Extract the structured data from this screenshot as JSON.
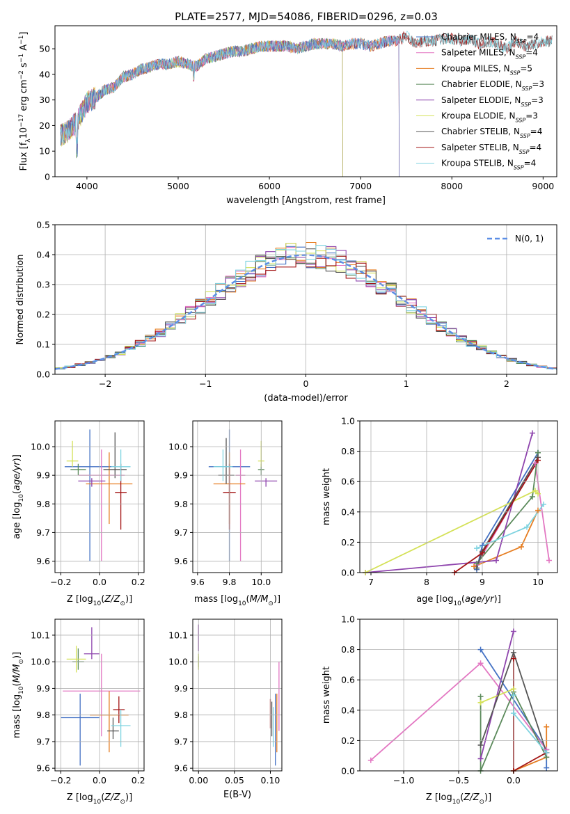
{
  "title": "PLATE=2577, MJD=54086, FIBERID=0296, z=0.03",
  "colors": {
    "series": [
      "#4472c4",
      "#e377c2",
      "#e67e22",
      "#5b8a5b",
      "#8e44ad",
      "#d4e157",
      "#555555",
      "#a31515",
      "#7fd3e0"
    ],
    "grid": "#b0b0b0",
    "normal": "#5b8ee6"
  },
  "chart_data": [
    {
      "id": "spectrum",
      "type": "line",
      "xlabel": "wavelength [Angstrom, rest frame]",
      "ylabel": "Flux [fλ10⁻¹⁷ erg cm⁻² s⁻¹ A⁻¹]",
      "xlim": [
        3650,
        9150
      ],
      "ylim": [
        0,
        59
      ],
      "xticks": [
        4000,
        5000,
        6000,
        7000,
        8000,
        9000
      ],
      "yticks": [
        0,
        10,
        20,
        30,
        40,
        50
      ],
      "legend_placement": "top-right",
      "series": [
        {
          "name": "Chabrier MILES, N",
          "sub": "SSP",
          "suffix": "=4",
          "cutoff": 7420
        },
        {
          "name": "Salpeter MILES, N",
          "sub": "SSP",
          "suffix": "=4",
          "cutoff": 7420
        },
        {
          "name": "Kroupa MILES, N",
          "sub": "SSP",
          "suffix": "=5",
          "cutoff": 7420
        },
        {
          "name": "Chabrier ELODIE, N",
          "sub": "SSP",
          "suffix": "=3",
          "cutoff": 6800
        },
        {
          "name": "Salpeter ELODIE, N",
          "sub": "SSP",
          "suffix": "=3",
          "cutoff": 6800
        },
        {
          "name": "Kroupa ELODIE, N",
          "sub": "SSP",
          "suffix": "=3",
          "cutoff": 6800
        },
        {
          "name": "Chabrier STELIB, N",
          "sub": "SSP",
          "suffix": "=4",
          "cutoff": 9150
        },
        {
          "name": "Salpeter STELIB, N",
          "sub": "SSP",
          "suffix": "=4",
          "cutoff": 9150
        },
        {
          "name": "Kroupa STELIB, N",
          "sub": "SSP",
          "suffix": "=4",
          "cutoff": 9150
        }
      ],
      "continuum": {
        "x": [
          3710,
          3800,
          3900,
          4000,
          4100,
          4200,
          4300,
          4400,
          4500,
          4600,
          4700,
          4800,
          4900,
          5000,
          5100,
          5200,
          5300,
          5400,
          5500,
          5600,
          5700,
          5800,
          5900,
          6000,
          6100,
          6200,
          6300,
          6400,
          6500,
          6600,
          6700,
          6800,
          6900,
          7000,
          7100,
          7200,
          7300,
          7400,
          7500,
          7600,
          7700,
          7800,
          7900,
          8000,
          8100,
          8200,
          8300,
          8400,
          8500,
          8600,
          8700,
          8800,
          8900,
          9000,
          9100
        ],
        "y": [
          16,
          18,
          22,
          29,
          31,
          34,
          35,
          39,
          40,
          42,
          43,
          44,
          44,
          45,
          44,
          43,
          46,
          47,
          48,
          49,
          49,
          50,
          51,
          51,
          51,
          51,
          50,
          51,
          52,
          52,
          52,
          51,
          52,
          52,
          51,
          52,
          53,
          53,
          55,
          52,
          53,
          53,
          54,
          54,
          53,
          54,
          52,
          53,
          52,
          50,
          53,
          51,
          52,
          53,
          53
        ]
      }
    },
    {
      "id": "residuals",
      "type": "histogram",
      "xlabel": "(data-model)/error",
      "ylabel": "Normed distribution",
      "xlim": [
        -2.5,
        2.5
      ],
      "ylim": [
        0,
        0.5
      ],
      "xticks": [
        -2,
        -1,
        0,
        1,
        2
      ],
      "yticks": [
        0.0,
        0.1,
        0.2,
        0.3,
        0.4,
        0.5
      ],
      "bin_width": 0.1,
      "legend": "N(0, 1)",
      "legend_placement": "top-right",
      "series_count": 9
    },
    {
      "id": "z_vs_age",
      "type": "scatter",
      "xlabel": "Z [log10(Z/Z☉)]",
      "ylabel": "age [log10(age/yr)]",
      "xlim": [
        -0.23,
        0.23
      ],
      "ylim": [
        9.56,
        10.09
      ],
      "xticks": [
        -0.2,
        0.0,
        0.2
      ],
      "yticks": [
        9.6,
        9.7,
        9.8,
        9.9,
        10.0
      ],
      "points": [
        {
          "x": -0.05,
          "y": 9.93,
          "xerr": 0.13,
          "yerr": [
            0.33,
            0.13
          ]
        },
        {
          "x": 0.01,
          "y": 9.9,
          "xerr": 0.12,
          "yerr": [
            0.3,
            0.09
          ]
        },
        {
          "x": 0.05,
          "y": 9.87,
          "xerr": 0.12,
          "yerr": [
            0.14,
            0.11
          ]
        },
        {
          "x": -0.11,
          "y": 9.92,
          "xerr": 0.04,
          "yerr": [
            0.02,
            0.02
          ]
        },
        {
          "x": -0.04,
          "y": 9.88,
          "xerr": 0.07,
          "yerr": [
            0.02,
            0.01
          ]
        },
        {
          "x": -0.14,
          "y": 9.95,
          "xerr": 0.03,
          "yerr": [
            0.02,
            0.07
          ]
        },
        {
          "x": 0.08,
          "y": 9.92,
          "xerr": 0.06,
          "yerr": [
            0.03,
            0.13
          ]
        },
        {
          "x": 0.11,
          "y": 9.84,
          "xerr": 0.03,
          "yerr": [
            0.13,
            0.1
          ]
        },
        {
          "x": 0.11,
          "y": 9.93,
          "xerr": 0.05,
          "yerr": [
            0.05,
            0.06
          ]
        }
      ]
    },
    {
      "id": "mass_vs_age",
      "type": "scatter",
      "xlabel": "mass [log10(M/M☉)]",
      "ylabel": "",
      "xlim": [
        9.57,
        10.13
      ],
      "ylim": [
        9.56,
        10.09
      ],
      "xticks": [
        9.6,
        9.8,
        10.0
      ],
      "yticks": [
        9.6,
        9.7,
        9.8,
        9.9,
        10.0
      ],
      "points": [
        {
          "x": 9.8,
          "y": 9.93,
          "xerr": 0.13,
          "yerr": [
            0.33,
            0.13
          ]
        },
        {
          "x": 9.87,
          "y": 9.9,
          "xerr": 0.03,
          "yerr": [
            0.3,
            0.09
          ]
        },
        {
          "x": 9.8,
          "y": 9.87,
          "xerr": 0.1,
          "yerr": [
            0.14,
            0.11
          ]
        },
        {
          "x": 10.0,
          "y": 9.92,
          "xerr": 0.02,
          "yerr": [
            0.02,
            0.02
          ]
        },
        {
          "x": 10.03,
          "y": 9.88,
          "xerr": 0.07,
          "yerr": [
            0.02,
            0.01
          ]
        },
        {
          "x": 10.0,
          "y": 9.95,
          "xerr": 0.02,
          "yerr": [
            0.02,
            0.07
          ]
        },
        {
          "x": 9.78,
          "y": 9.9,
          "xerr": 0.05,
          "yerr": [
            0.03,
            0.13
          ]
        },
        {
          "x": 9.8,
          "y": 9.84,
          "xerr": 0.04,
          "yerr": [
            0.13,
            0.1
          ]
        },
        {
          "x": 9.76,
          "y": 9.93,
          "xerr": 0.06,
          "yerr": [
            0.05,
            0.06
          ]
        }
      ]
    },
    {
      "id": "age_vs_weight",
      "type": "line",
      "xlabel": "age [log10(age/yr)]",
      "ylabel": "mass weight",
      "xlim": [
        6.8,
        10.35
      ],
      "ylim": [
        0,
        1.0
      ],
      "xticks": [
        7,
        8,
        9,
        10
      ],
      "yticks": [
        0.0,
        0.2,
        0.4,
        0.6,
        0.8,
        1.0
      ],
      "series": [
        {
          "x": [
            8.9,
            9.0,
            10.0
          ],
          "y": [
            0.02,
            0.18,
            0.79
          ]
        },
        {
          "x": [
            8.9,
            9.95,
            10.2
          ],
          "y": [
            0.05,
            0.72,
            0.08
          ]
        },
        {
          "x": [
            8.85,
            9.7,
            10.0
          ],
          "y": [
            0.04,
            0.17,
            0.41
          ]
        },
        {
          "x": [
            8.9,
            9.9,
            10.0
          ],
          "y": [
            0.06,
            0.5,
            0.79
          ]
        },
        {
          "x": [
            6.9,
            9.25,
            9.9
          ],
          "y": [
            0.0,
            0.08,
            0.92
          ]
        },
        {
          "x": [
            6.9,
            9.95,
            10.0
          ],
          "y": [
            0.0,
            0.54,
            0.52
          ]
        },
        {
          "x": [
            8.9,
            9.0,
            10.0
          ],
          "y": [
            0.03,
            0.14,
            0.76
          ]
        },
        {
          "x": [
            8.5,
            9.0,
            10.0
          ],
          "y": [
            0.0,
            0.13,
            0.74
          ]
        },
        {
          "x": [
            8.9,
            9.8,
            10.1
          ],
          "y": [
            0.16,
            0.3,
            0.45
          ]
        }
      ]
    },
    {
      "id": "z_vs_mass",
      "type": "scatter",
      "xlabel": "Z [log10(Z/Z☉)]",
      "ylabel": "mass [log10(M/M☉)]",
      "xlim": [
        -0.23,
        0.23
      ],
      "ylim": [
        9.59,
        10.16
      ],
      "xticks": [
        -0.2,
        0.0,
        0.2
      ],
      "yticks": [
        9.6,
        9.7,
        9.8,
        9.9,
        10.0,
        10.1
      ],
      "points": [
        {
          "x": -0.1,
          "y": 9.79,
          "xerr": 0.1,
          "yerr": [
            0.18,
            0.09
          ]
        },
        {
          "x": 0.01,
          "y": 9.89,
          "xerr": 0.2,
          "yerr": [
            0.17,
            0.14
          ]
        },
        {
          "x": 0.05,
          "y": 9.8,
          "xerr": 0.1,
          "yerr": [
            0.14,
            0.09
          ]
        },
        {
          "x": -0.11,
          "y": 10.0,
          "xerr": 0.03,
          "yerr": [
            0.03,
            0.05
          ]
        },
        {
          "x": -0.04,
          "y": 10.03,
          "xerr": 0.04,
          "yerr": [
            0.02,
            0.1
          ]
        },
        {
          "x": -0.12,
          "y": 10.01,
          "xerr": 0.05,
          "yerr": [
            0.05,
            0.05
          ]
        },
        {
          "x": 0.07,
          "y": 9.74,
          "xerr": 0.03,
          "yerr": [
            0.03,
            0.05
          ]
        },
        {
          "x": 0.1,
          "y": 9.82,
          "xerr": 0.03,
          "yerr": [
            0.05,
            0.05
          ]
        },
        {
          "x": 0.11,
          "y": 9.76,
          "xerr": 0.05,
          "yerr": [
            0.08,
            0.06
          ]
        }
      ]
    },
    {
      "id": "ebv_vs_mass",
      "type": "scatter",
      "xlabel": "E(B-V)",
      "ylabel": "",
      "xlim": [
        -0.008,
        0.116
      ],
      "ylim": [
        9.59,
        10.16
      ],
      "xticks": [
        0.0,
        0.05,
        0.1
      ],
      "yticks": [
        9.6,
        9.7,
        9.8,
        9.9,
        10.0,
        10.1
      ],
      "points": [
        {
          "x": 0.107,
          "y": 9.79,
          "xerr": 0.0,
          "yerr": [
            0.18,
            0.09
          ]
        },
        {
          "x": 0.112,
          "y": 9.89,
          "xerr": 0.0,
          "yerr": [
            0.15,
            0.11
          ]
        },
        {
          "x": 0.109,
          "y": 9.8,
          "xerr": 0.0,
          "yerr": [
            0.14,
            0.08
          ]
        },
        {
          "x": 0.0,
          "y": 10.0,
          "xerr": 0.0,
          "yerr": [
            0.02,
            0.02
          ]
        },
        {
          "x": 0.0,
          "y": 10.08,
          "xerr": 0.0,
          "yerr": [
            0.04,
            0.06
          ]
        },
        {
          "x": 0.0,
          "y": 10.0,
          "xerr": 0.0,
          "yerr": [
            0.03,
            0.03
          ]
        },
        {
          "x": 0.102,
          "y": 9.8,
          "xerr": 0.0,
          "yerr": [
            0.08,
            0.05
          ]
        },
        {
          "x": 0.1,
          "y": 9.81,
          "xerr": 0.0,
          "yerr": [
            0.06,
            0.05
          ]
        },
        {
          "x": 0.104,
          "y": 9.76,
          "xerr": 0.0,
          "yerr": [
            0.08,
            0.07
          ]
        }
      ]
    },
    {
      "id": "z_vs_weight",
      "type": "line",
      "xlabel": "Z [log10(Z/Z☉)]",
      "ylabel": "mass weight",
      "xlim": [
        -1.4,
        0.4
      ],
      "ylim": [
        0,
        1.0
      ],
      "xticks": [
        -1.0,
        -0.5,
        0.0
      ],
      "yticks": [
        0.0,
        0.2,
        0.4,
        0.6,
        0.8,
        1.0
      ],
      "series": [
        {
          "x": [
            -0.3,
            0.3,
            0.3
          ],
          "y": [
            0.8,
            0.14,
            0.02
          ]
        },
        {
          "x": [
            -1.3,
            -0.3,
            0.3
          ],
          "y": [
            0.07,
            0.71,
            0.14
          ]
        },
        {
          "x": [
            0.0,
            0.3,
            0.3
          ],
          "y": [
            0.0,
            0.09,
            0.29
          ]
        },
        {
          "x": [
            -0.3,
            -0.3,
            0.0,
            0.3
          ],
          "y": [
            0.49,
            0.0,
            0.52,
            0.09
          ]
        },
        {
          "x": [
            -0.3,
            0.0
          ],
          "y": [
            0.08,
            0.92
          ]
        },
        {
          "x": [
            -0.3,
            -0.3,
            0.0
          ],
          "y": [
            0.45,
            0.45,
            0.54
          ]
        },
        {
          "x": [
            -0.3,
            0.0,
            0.3
          ],
          "y": [
            0.17,
            0.78,
            0.12
          ]
        },
        {
          "x": [
            0.0,
            0.0,
            0.3
          ],
          "y": [
            0.74,
            0.0,
            0.12
          ]
        },
        {
          "x": [
            0.0,
            0.0,
            0.3
          ],
          "y": [
            0.5,
            0.38,
            0.12
          ]
        }
      ]
    }
  ]
}
